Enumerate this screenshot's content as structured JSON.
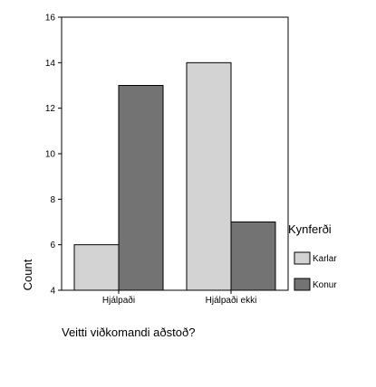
{
  "chart_data": {
    "type": "bar",
    "title": "",
    "xlabel": "Veitti viðkomandi aðstoð?",
    "ylabel": "Count",
    "ylim": [
      4,
      16
    ],
    "yticks": [
      4,
      6,
      8,
      10,
      12,
      14,
      16
    ],
    "categories": [
      "Hjálpaði",
      "Hjálpaði ekki"
    ],
    "series": [
      {
        "name": "Karlar",
        "values": [
          6,
          14
        ],
        "color": "#d3d3d3"
      },
      {
        "name": "Konur",
        "values": [
          13,
          7
        ],
        "color": "#737373"
      }
    ],
    "legend": {
      "title": "Kynferði",
      "placement": "right"
    },
    "grid": false
  }
}
